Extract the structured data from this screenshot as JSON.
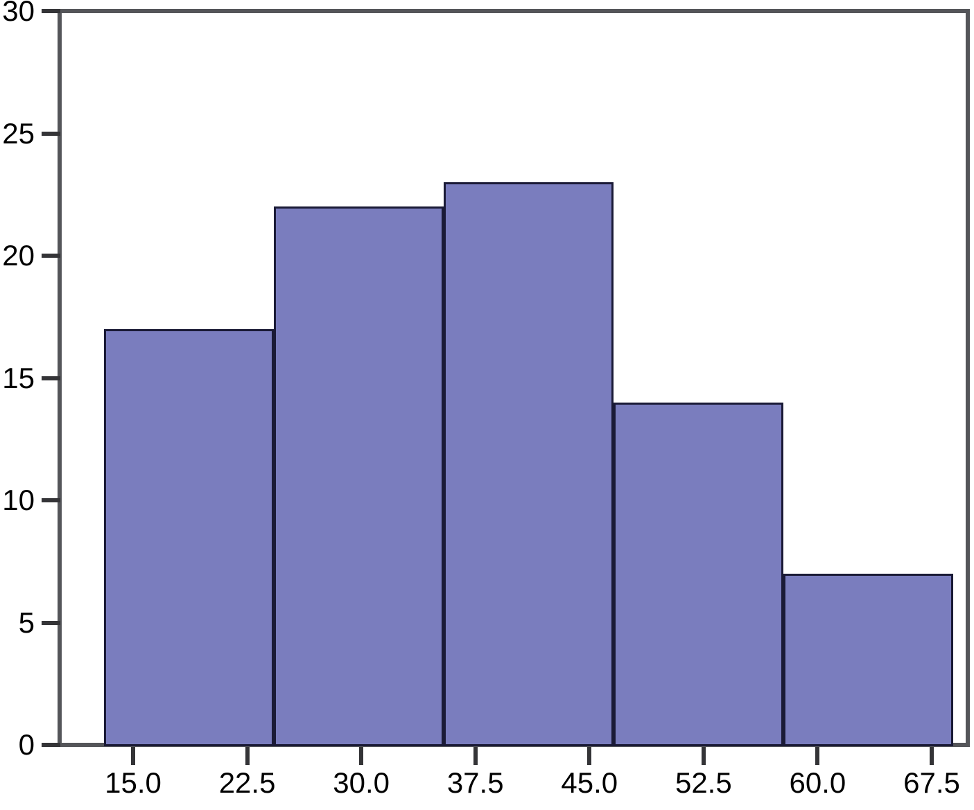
{
  "chart_data": {
    "type": "bar",
    "subtype": "histogram",
    "title": "",
    "xlabel": "",
    "ylabel": "",
    "values": [
      17,
      22,
      23,
      14,
      7
    ],
    "bin_count": 5,
    "x_tick_labels": [
      "15.0",
      "22.5",
      "30.0",
      "37.5",
      "45.0",
      "52.5",
      "60.0",
      "67.5"
    ],
    "y_ticks": [
      0,
      5,
      10,
      15,
      20,
      25,
      30
    ],
    "y_tick_labels": [
      "0",
      "5",
      "10",
      "15",
      "20",
      "25",
      "30"
    ],
    "ylim": [
      0,
      30
    ],
    "grid": false,
    "legend": null,
    "colors": {
      "bar_fill": "#7a7dbe",
      "bar_border": "#1a1a36",
      "plot_border": "#545559",
      "tick": "#343437",
      "label": "#000000",
      "background": "#ffffff"
    }
  }
}
